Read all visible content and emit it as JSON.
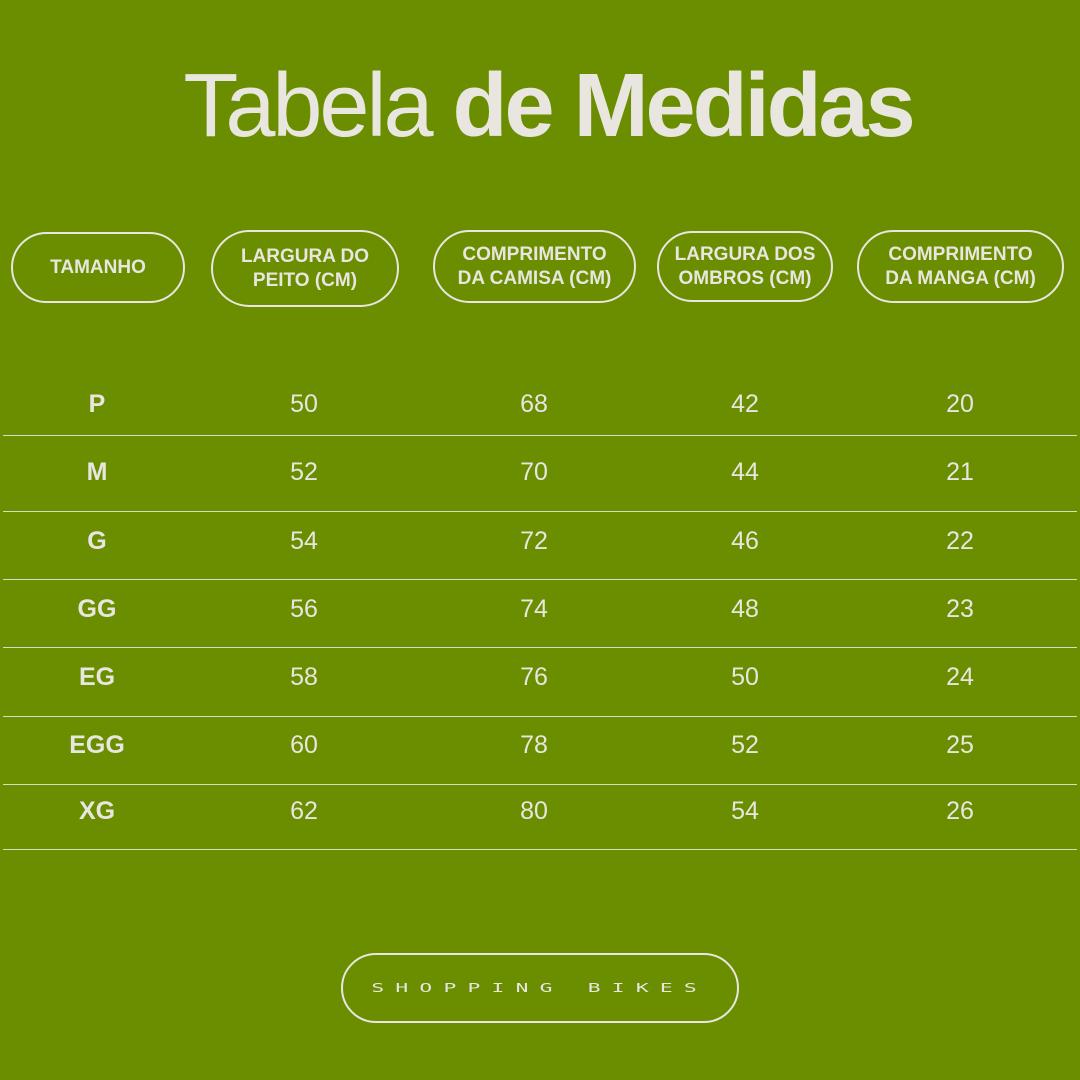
{
  "title": {
    "light": "Tabela",
    "bold": "de Medidas"
  },
  "headers": [
    "TAMANHO",
    "LARGURA DO\nPEITO (CM)",
    "COMPRIMENTO\nDA CAMISA (CM)",
    "LARGURA DOS\nOMBROS (CM)",
    "COMPRIMENTO\nDA MANGA (CM)"
  ],
  "rows": [
    [
      "P",
      "50",
      "68",
      "42",
      "20"
    ],
    [
      "M",
      "52",
      "70",
      "44",
      "21"
    ],
    [
      "G",
      "54",
      "72",
      "46",
      "22"
    ],
    [
      "GG",
      "56",
      "74",
      "48",
      "23"
    ],
    [
      "EG",
      "58",
      "76",
      "50",
      "24"
    ],
    [
      "EGG",
      "60",
      "78",
      "52",
      "25"
    ],
    [
      "XG",
      "62",
      "80",
      "54",
      "26"
    ]
  ],
  "brand": "SHOPPING BIKES",
  "colors": {
    "background": "#6a8e00",
    "text": "#e8e6df"
  }
}
